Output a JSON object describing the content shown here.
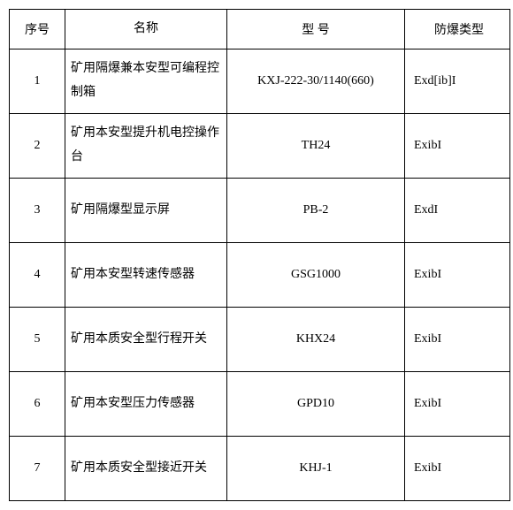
{
  "font_size": 14,
  "columns": [
    "序号",
    "名称",
    "型   号",
    "防爆类型"
  ],
  "rows": [
    {
      "seq": "1",
      "name": "矿用隔爆兼本安型可编程控制箱",
      "model": "KXJ-222-30/1140(660)",
      "type": "Exd[ib]I"
    },
    {
      "seq": "2",
      "name": "矿用本安型提升机电控操作台",
      "model": "TH24",
      "type": "ExibI"
    },
    {
      "seq": "3",
      "name": "矿用隔爆型显示屏",
      "model": "PB-2",
      "type": "ExdI"
    },
    {
      "seq": "4",
      "name": "矿用本安型转速传感器",
      "model": "GSG1000",
      "type": "ExibI"
    },
    {
      "seq": "5",
      "name": "矿用本质安全型行程开关",
      "model": "KHX24",
      "type": "ExibI"
    },
    {
      "seq": "6",
      "name": "矿用本安型压力传感器",
      "model": "GPD10",
      "type": "ExibI"
    },
    {
      "seq": "7",
      "name": "矿用本质安全型接近开关",
      "model": "KHJ-1",
      "type": "ExibI"
    }
  ]
}
